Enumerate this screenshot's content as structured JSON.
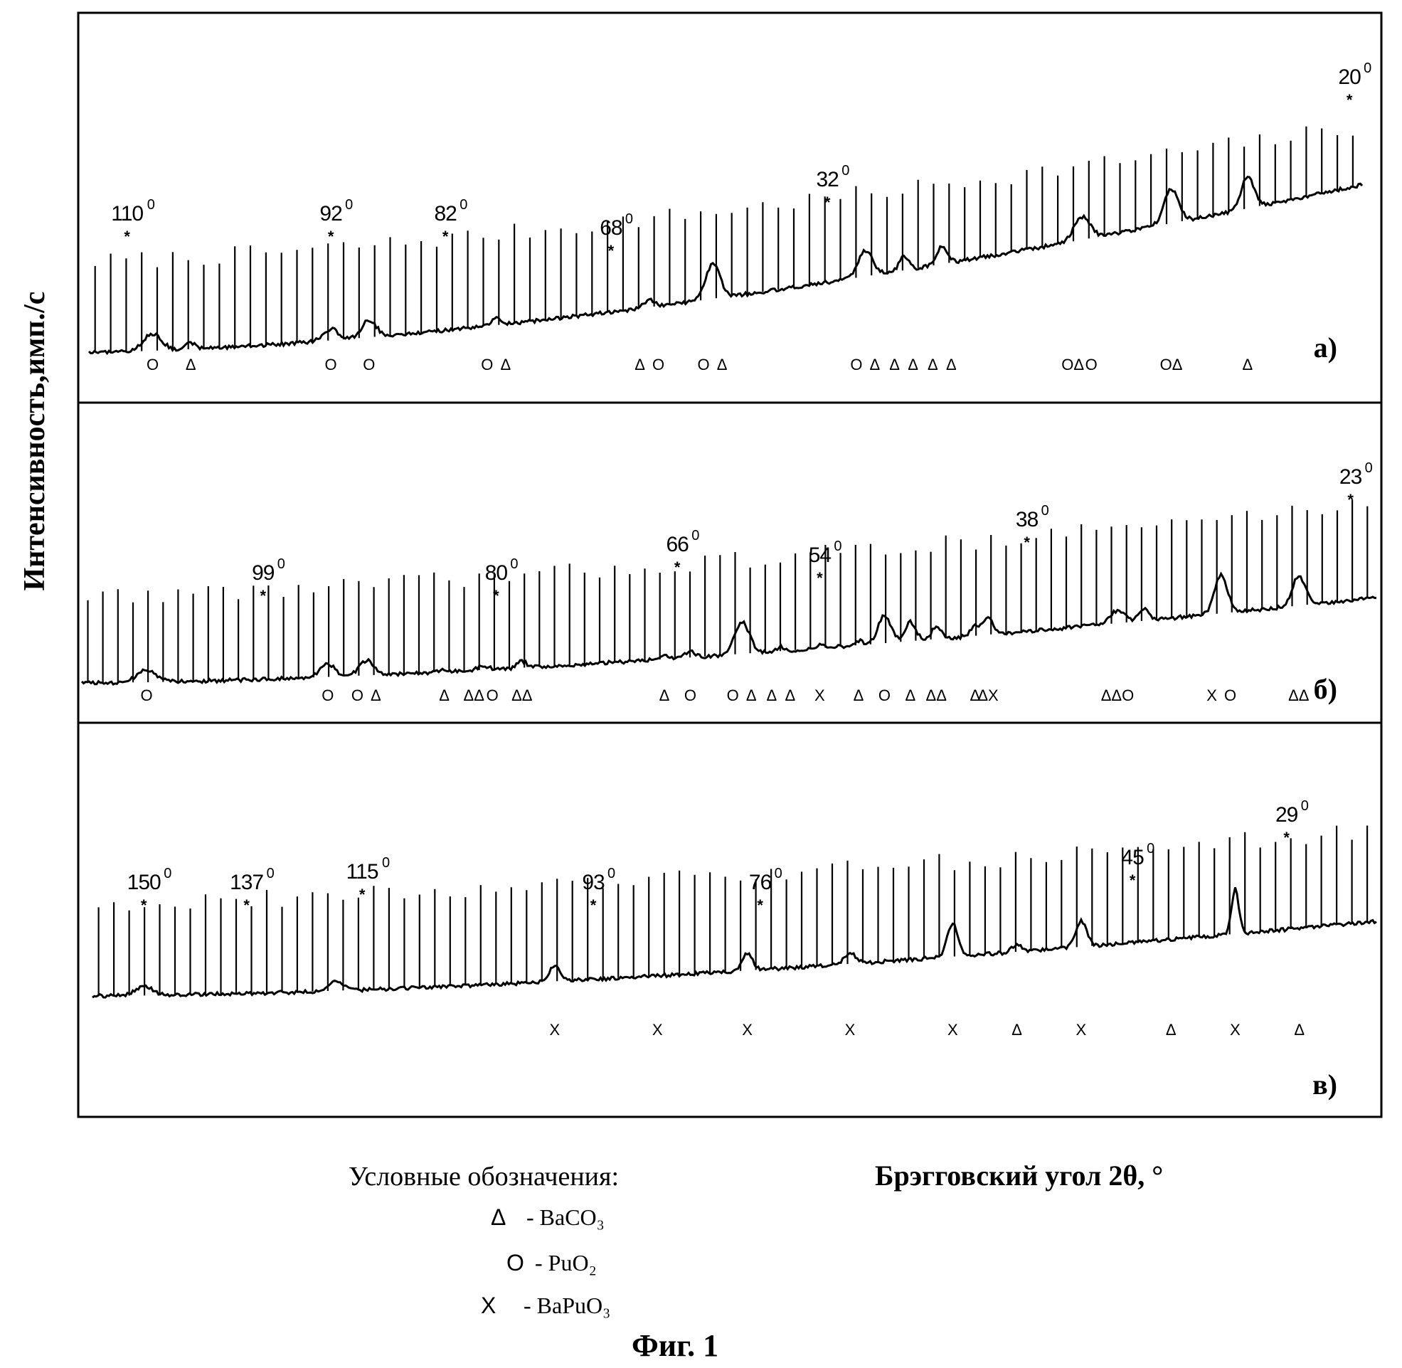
{
  "ylabel": "Интенсивность,имп./с",
  "xlabel": "Брэгговский угол  2θ, °",
  "legend": {
    "title": "Условные обозначения:",
    "entries": [
      {
        "symbol": "Δ",
        "text": "- BaCO₃"
      },
      {
        "symbol": "O",
        "text": "- PuO₂"
      },
      {
        "symbol": "X",
        "text": "- BaPuO₃"
      }
    ]
  },
  "caption": "Фиг. 1",
  "chart_data": [
    {
      "type": "line",
      "panel": "а)",
      "x_direction": "decreasing left to right",
      "angle_labels": [
        "110",
        "92",
        "82",
        "68",
        "32",
        "20"
      ],
      "degree_mark": "0",
      "peaks": [
        {
          "pos": 0.05,
          "h": 0.3,
          "w": 0.01,
          "markers": [
            "O"
          ]
        },
        {
          "pos": 0.08,
          "h": 0.1,
          "w": 0.006,
          "markers": [
            "Δ"
          ]
        },
        {
          "pos": 0.19,
          "h": 0.2,
          "w": 0.008,
          "markers": [
            "O"
          ]
        },
        {
          "pos": 0.22,
          "h": 0.3,
          "w": 0.008,
          "markers": [
            "O"
          ]
        },
        {
          "pos": 0.32,
          "h": 0.12,
          "w": 0.006,
          "markers": [
            "O",
            "Δ"
          ]
        },
        {
          "pos": 0.44,
          "h": 0.12,
          "w": 0.006,
          "markers": [
            "Δ",
            "O"
          ]
        },
        {
          "pos": 0.49,
          "h": 0.6,
          "w": 0.008,
          "markers": [
            "O",
            "Δ"
          ]
        },
        {
          "pos": 0.61,
          "h": 0.45,
          "w": 0.008,
          "markers": [
            "O",
            "Δ"
          ]
        },
        {
          "pos": 0.64,
          "h": 0.25,
          "w": 0.005,
          "markers": [
            "Δ",
            "Δ"
          ]
        },
        {
          "pos": 0.67,
          "h": 0.3,
          "w": 0.006,
          "markers": [
            "Δ",
            "Δ"
          ]
        },
        {
          "pos": 0.78,
          "h": 0.4,
          "w": 0.009,
          "markers": [
            "OΔ",
            "O"
          ]
        },
        {
          "pos": 0.85,
          "h": 0.6,
          "w": 0.008,
          "markers": [
            "OΔ"
          ]
        },
        {
          "pos": 0.91,
          "h": 0.55,
          "w": 0.007,
          "markers": [
            "Δ"
          ]
        }
      ]
    },
    {
      "type": "line",
      "panel": "б)",
      "x_direction": "decreasing left to right",
      "angle_labels": [
        "99",
        "80",
        "66",
        "54",
        "38",
        "23"
      ],
      "degree_mark": "0",
      "peaks": [
        {
          "pos": 0.05,
          "h": 0.3,
          "w": 0.01,
          "markers": [
            "O"
          ]
        },
        {
          "pos": 0.19,
          "h": 0.3,
          "w": 0.008,
          "markers": [
            "O"
          ]
        },
        {
          "pos": 0.22,
          "h": 0.35,
          "w": 0.008,
          "markers": [
            "O",
            "Δ"
          ]
        },
        {
          "pos": 0.28,
          "h": 0.06,
          "w": 0.005,
          "markers": [
            "Δ"
          ]
        },
        {
          "pos": 0.31,
          "h": 0.1,
          "w": 0.006,
          "markers": [
            "ΔΔ",
            "O"
          ]
        },
        {
          "pos": 0.34,
          "h": 0.15,
          "w": 0.005,
          "markers": [
            "ΔΔ"
          ]
        },
        {
          "pos": 0.45,
          "h": 0.1,
          "w": 0.005,
          "markers": [
            "Δ"
          ]
        },
        {
          "pos": 0.47,
          "h": 0.15,
          "w": 0.005,
          "markers": [
            "O"
          ]
        },
        {
          "pos": 0.51,
          "h": 0.75,
          "w": 0.008,
          "markers": [
            "O",
            "Δ"
          ]
        },
        {
          "pos": 0.54,
          "h": 0.1,
          "w": 0.005,
          "markers": [
            "Δ",
            "Δ"
          ]
        },
        {
          "pos": 0.57,
          "h": 0.08,
          "w": 0.005,
          "markers": [
            "X"
          ]
        },
        {
          "pos": 0.6,
          "h": 0.1,
          "w": 0.005,
          "markers": [
            "Δ"
          ]
        },
        {
          "pos": 0.62,
          "h": 0.65,
          "w": 0.007,
          "markers": [
            "O"
          ]
        },
        {
          "pos": 0.64,
          "h": 0.45,
          "w": 0.006,
          "markers": [
            "Δ"
          ]
        },
        {
          "pos": 0.66,
          "h": 0.3,
          "w": 0.005,
          "markers": [
            "ΔΔ"
          ]
        },
        {
          "pos": 0.69,
          "h": 0.25,
          "w": 0.005,
          "markers": [
            "Δ"
          ]
        },
        {
          "pos": 0.7,
          "h": 0.4,
          "w": 0.005,
          "markers": [
            "ΔX"
          ]
        },
        {
          "pos": 0.8,
          "h": 0.3,
          "w": 0.008,
          "markers": [
            "ΔΔO"
          ]
        },
        {
          "pos": 0.82,
          "h": 0.3,
          "w": 0.005,
          "markers": []
        },
        {
          "pos": 0.88,
          "h": 0.9,
          "w": 0.007,
          "markers": [
            "X",
            "O"
          ]
        },
        {
          "pos": 0.94,
          "h": 0.7,
          "w": 0.007,
          "markers": [
            "ΔΔ"
          ]
        }
      ]
    },
    {
      "type": "line",
      "panel": "в)",
      "x_direction": "decreasing left to right",
      "angle_labels": [
        "150",
        "137",
        "115",
        "93",
        "76",
        "45",
        "29"
      ],
      "degree_mark": "0",
      "peaks": [
        {
          "pos": 0.04,
          "h": 0.12,
          "w": 0.01,
          "markers": []
        },
        {
          "pos": 0.19,
          "h": 0.14,
          "w": 0.008,
          "markers": []
        },
        {
          "pos": 0.36,
          "h": 0.2,
          "w": 0.006,
          "markers": [
            "X"
          ]
        },
        {
          "pos": 0.44,
          "h": 0.0,
          "w": 0.006,
          "markers": [
            "X"
          ]
        },
        {
          "pos": 0.51,
          "h": 0.22,
          "w": 0.006,
          "markers": [
            "X"
          ]
        },
        {
          "pos": 0.59,
          "h": 0.15,
          "w": 0.006,
          "markers": [
            "X"
          ]
        },
        {
          "pos": 0.67,
          "h": 0.45,
          "w": 0.006,
          "markers": [
            "X"
          ]
        },
        {
          "pos": 0.72,
          "h": 0.1,
          "w": 0.005,
          "markers": [
            "Δ"
          ]
        },
        {
          "pos": 0.77,
          "h": 0.35,
          "w": 0.006,
          "markers": [
            "X"
          ]
        },
        {
          "pos": 0.84,
          "h": 0.0,
          "w": 0.005,
          "markers": [
            "Δ"
          ]
        },
        {
          "pos": 0.89,
          "h": 0.6,
          "w": 0.004,
          "markers": [
            "X"
          ]
        },
        {
          "pos": 0.94,
          "h": 0.0,
          "w": 0.005,
          "markers": [
            "Δ"
          ]
        }
      ]
    }
  ]
}
